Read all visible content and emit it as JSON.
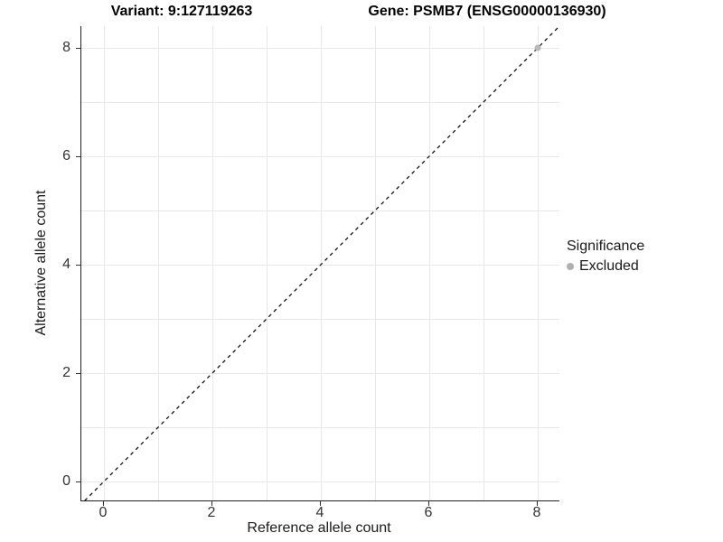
{
  "titles": {
    "variant": "Variant: 9:127119263",
    "gene": "Gene: PSMB7 (ENSG00000136930)"
  },
  "axes": {
    "x_label": "Reference allele count",
    "y_label": "Alternative allele count"
  },
  "legend": {
    "title": "Significance",
    "items": [
      {
        "label": "Excluded",
        "color": "#b0b0b0"
      }
    ]
  },
  "colors": {
    "grid": "#e8e8e8",
    "axis_line": "#1f1f1f",
    "tick_text": "#333333",
    "reference_line": "#000000",
    "excluded_point": "#b9b9b9"
  },
  "chart_data": {
    "type": "scatter",
    "title_left": "Variant: 9:127119263",
    "title_right": "Gene: PSMB7 (ENSG00000136930)",
    "xlabel": "Reference allele count",
    "ylabel": "Alternative allele count",
    "xlim": [
      -0.45,
      8.45
    ],
    "ylim": [
      -0.45,
      8.45
    ],
    "x_ticks": [
      0,
      2,
      4,
      6,
      8
    ],
    "y_ticks": [
      0,
      2,
      4,
      6,
      8
    ],
    "grid_x": [
      0,
      1,
      2,
      3,
      4,
      5,
      6,
      7,
      8
    ],
    "grid_y": [
      0,
      1,
      2,
      3,
      4,
      5,
      6,
      7,
      8
    ],
    "grid": true,
    "legend_position": "right",
    "series": [
      {
        "name": "Excluded",
        "color": "#b9b9b9",
        "points": [
          [
            8,
            8
          ]
        ]
      }
    ],
    "reference_line": {
      "kind": "identity",
      "equation": "y = x",
      "style": "dashed",
      "color": "#000000"
    }
  }
}
